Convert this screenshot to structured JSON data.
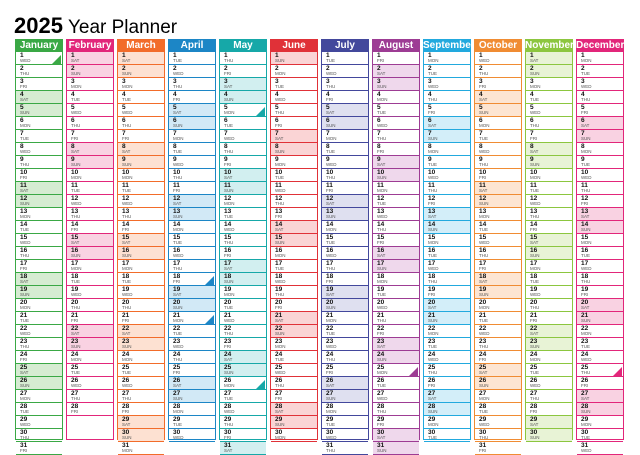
{
  "title": {
    "year": "2025",
    "text": "Year Planner"
  },
  "weekday_abbr": [
    "SUN",
    "MON",
    "TUE",
    "WED",
    "THU",
    "FRI",
    "SAT"
  ],
  "months": [
    {
      "name": "January",
      "color": "#3aa845",
      "shade": "#d6ecd2",
      "start": 3,
      "days": 31
    },
    {
      "name": "February",
      "color": "#e2267a",
      "shade": "#f9d2e2",
      "start": 6,
      "days": 28
    },
    {
      "name": "March",
      "color": "#f26c2a",
      "shade": "#fde1d2",
      "start": 6,
      "days": 31
    },
    {
      "name": "April",
      "color": "#1c86c6",
      "shade": "#d2e9f6",
      "start": 2,
      "days": 30
    },
    {
      "name": "May",
      "color": "#16a8a8",
      "shade": "#d2eff0",
      "start": 4,
      "days": 31
    },
    {
      "name": "June",
      "color": "#e03138",
      "shade": "#fad4d5",
      "start": 0,
      "days": 30
    },
    {
      "name": "July",
      "color": "#43489c",
      "shade": "#dfe0f0",
      "start": 2,
      "days": 31
    },
    {
      "name": "August",
      "color": "#9d3c94",
      "shade": "#efd8ec",
      "start": 5,
      "days": 31
    },
    {
      "name": "September",
      "color": "#22a9de",
      "shade": "#d3eef9",
      "start": 1,
      "days": 30
    },
    {
      "name": "October",
      "color": "#f08c33",
      "shade": "#fde5d2",
      "start": 3,
      "days": 31
    },
    {
      "name": "November",
      "color": "#8cc63f",
      "shade": "#e8f3d6",
      "start": 6,
      "days": 30
    },
    {
      "name": "December",
      "color": "#e2267a",
      "shade": "#f9d2e2",
      "start": 1,
      "days": 31
    }
  ],
  "markers": [
    {
      "month": 0,
      "day": 1
    },
    {
      "month": 4,
      "day": 5
    },
    {
      "month": 3,
      "day": 18
    },
    {
      "month": 3,
      "day": 21
    },
    {
      "month": 4,
      "day": 26
    },
    {
      "month": 7,
      "day": 25
    },
    {
      "month": 11,
      "day": 25
    }
  ]
}
